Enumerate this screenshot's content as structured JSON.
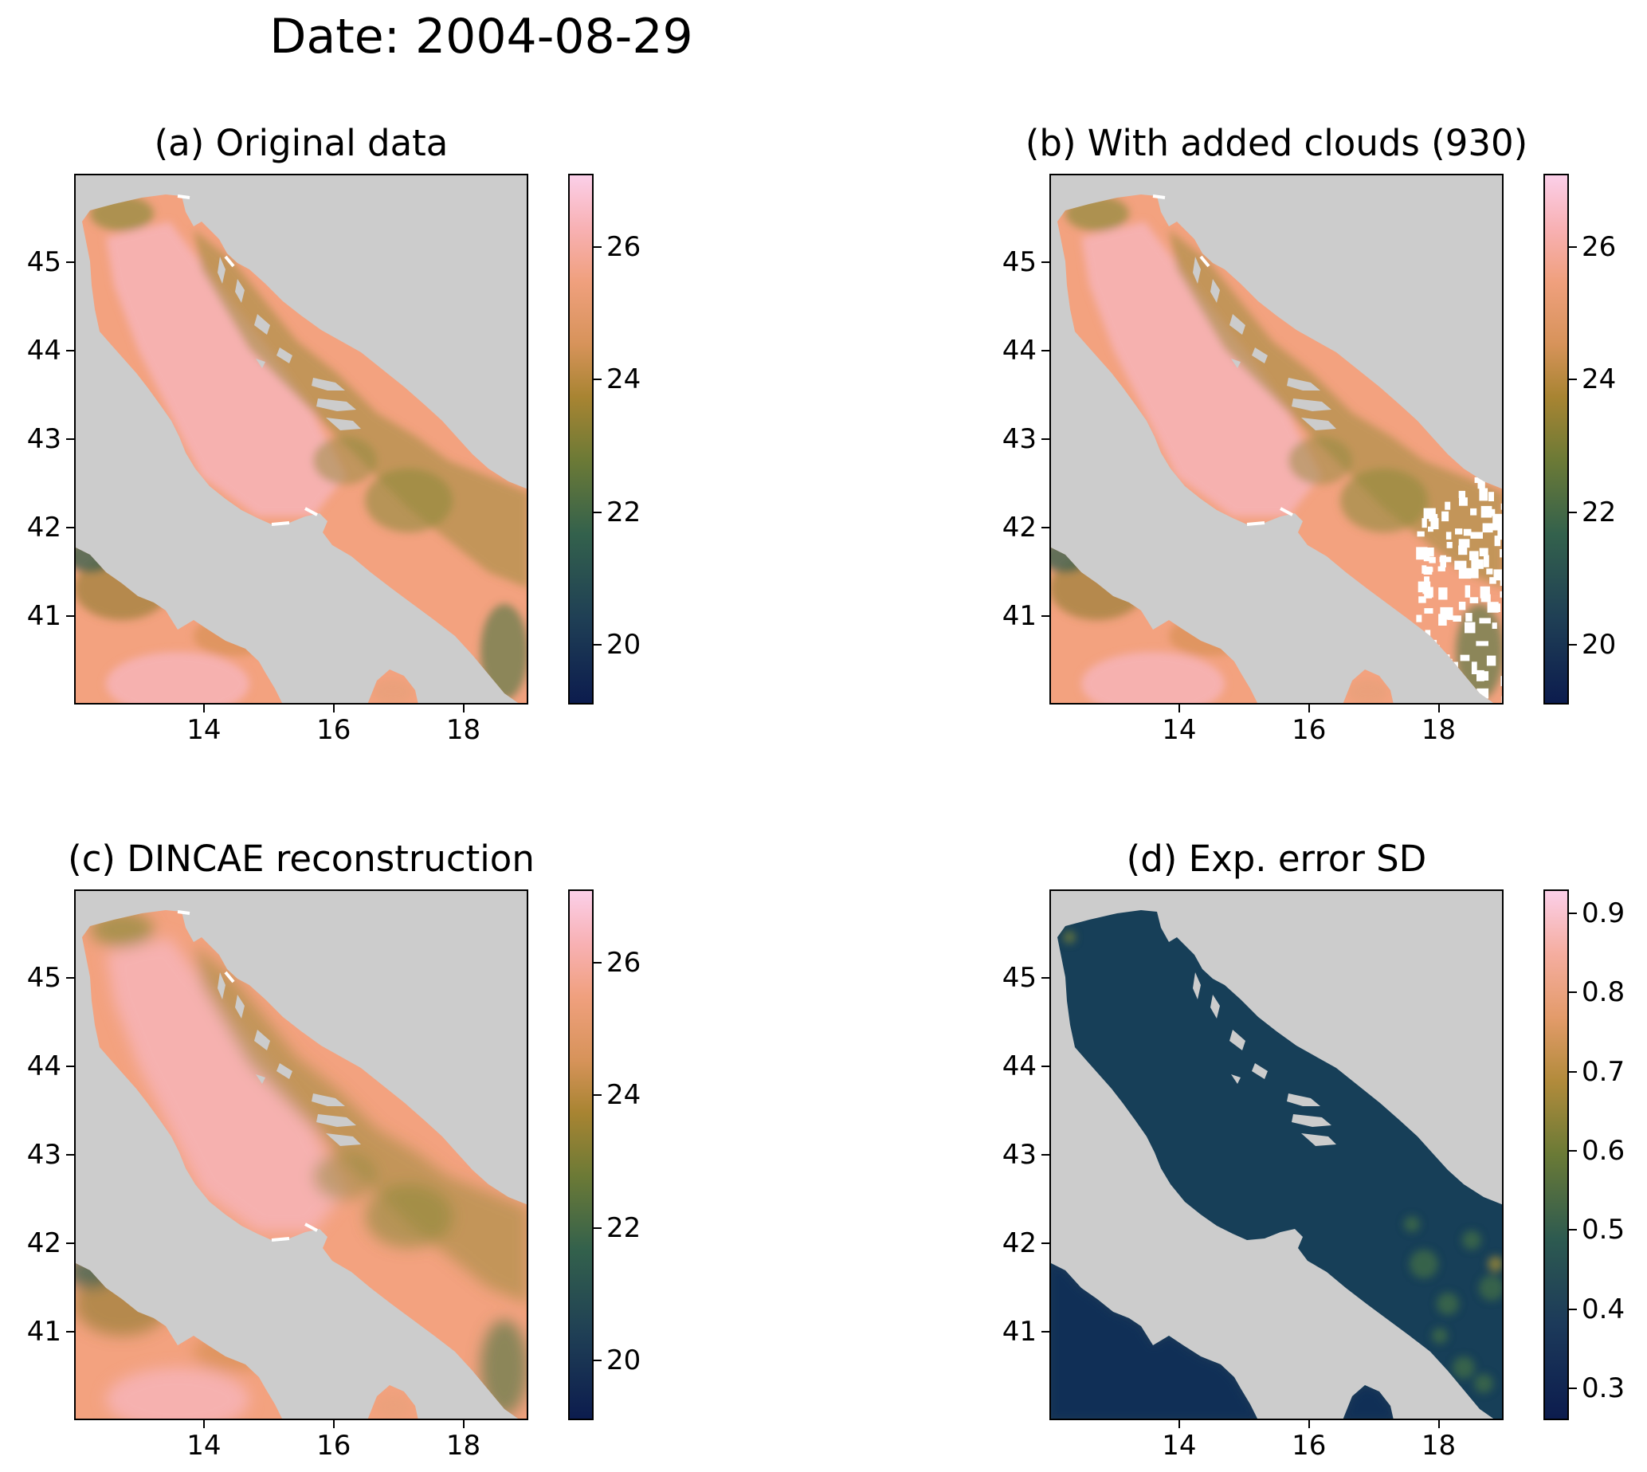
{
  "figure": {
    "title": "Date: 2004-08-29"
  },
  "panels": [
    {
      "title": "(a) Original data",
      "kind": "sst",
      "clouds": false,
      "colorbar": [
        "20",
        "22",
        "24",
        "26"
      ]
    },
    {
      "title": "(b) With added clouds (930)",
      "kind": "sst",
      "clouds": true,
      "colorbar": [
        "20",
        "22",
        "24",
        "26"
      ]
    },
    {
      "title": "(c) DINCAE reconstruction",
      "kind": "sst_smooth",
      "clouds": false,
      "colorbar": [
        "20",
        "22",
        "24",
        "26"
      ]
    },
    {
      "title": "(d) Exp. error SD",
      "kind": "err",
      "clouds": false,
      "colorbar": [
        "0.3",
        "0.4",
        "0.5",
        "0.6",
        "0.7",
        "0.8",
        "0.9"
      ]
    }
  ],
  "axes": {
    "x_ticks": [
      "14",
      "16",
      "18"
    ],
    "y_ticks": [
      "41",
      "42",
      "43",
      "44",
      "45"
    ]
  },
  "colors": {
    "land": "#cccccc",
    "sea_warm": "#f3a27f",
    "sea_pink": "#f6b3b5",
    "sea_olive": "#9a8a3a",
    "err_sea": "#173f58",
    "cloud": "#ffffff"
  }
}
